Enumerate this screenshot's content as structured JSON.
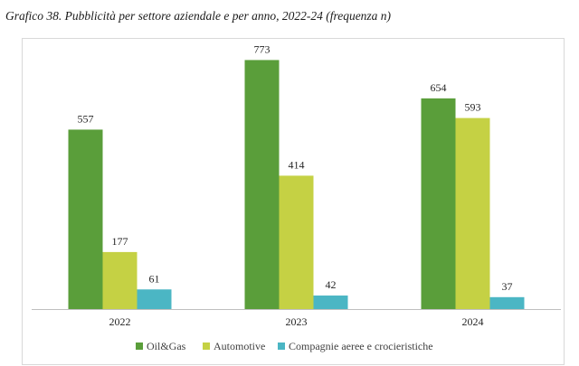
{
  "chart_data": {
    "type": "bar",
    "title": "Grafico 38. Pubblicità per settore aziendale e per anno, 2022-24 (frequenza n)",
    "categories": [
      "2022",
      "2023",
      "2024"
    ],
    "series": [
      {
        "name": "Oil&Gas",
        "color": "#5a9e3a",
        "values": [
          557,
          773,
          654
        ]
      },
      {
        "name": "Automotive",
        "color": "#c5d144",
        "values": [
          177,
          414,
          593
        ]
      },
      {
        "name": "Compagnie aeree e crocieristiche",
        "color": "#4bb6c4",
        "values": [
          61,
          42,
          37
        ]
      }
    ],
    "xlabel": "",
    "ylabel": "",
    "ylim": [
      0,
      800
    ],
    "grid": false,
    "legend": "bottom"
  }
}
